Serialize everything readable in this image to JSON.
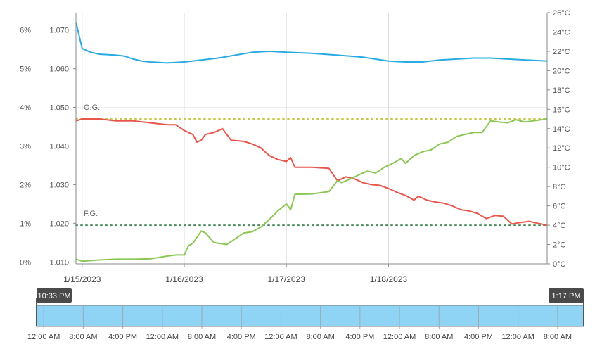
{
  "chart_data": {
    "type": "line",
    "x_start": "2023-01-14T22:33",
    "x_end": "2023-01-19T13:17",
    "x_ticks": [
      "1/15/2023",
      "1/16/2023",
      "1/17/2023",
      "1/18/2023"
    ],
    "y_percent_ticks": [
      "0%",
      "1%",
      "2%",
      "3%",
      "4%",
      "5%",
      "6%"
    ],
    "y_gravity_ticks": [
      "1.010",
      "1.020",
      "1.030",
      "1.040",
      "1.050",
      "1.060",
      "1.070"
    ],
    "y_temp_ticks": [
      "0°C",
      "2°C",
      "4°C",
      "6°C",
      "8°C",
      "10°C",
      "12°C",
      "14°C",
      "16°C",
      "18°C",
      "20°C",
      "22°C",
      "24°C",
      "26°C"
    ],
    "ylim_gravity": [
      1.0095,
      1.0745
    ],
    "ylim_temp": [
      0,
      26
    ],
    "reference_lines": [
      {
        "label": "O.G.",
        "value": 1.047,
        "color": "#c8c84a"
      },
      {
        "label": "F.G.",
        "value": 1.0195,
        "color": "#4a8a5a"
      }
    ],
    "series": [
      {
        "color": "#29abe2",
        "axis": "temperature",
        "values": [
          [
            "2023-01-14T22:33",
            25.0
          ],
          [
            "2023-01-15T00:00",
            22.3
          ],
          [
            "2023-01-15T02:00",
            21.9
          ],
          [
            "2023-01-15T04:00",
            21.7
          ],
          [
            "2023-01-15T08:00",
            21.6
          ],
          [
            "2023-01-15T10:00",
            21.5
          ],
          [
            "2023-01-15T12:00",
            21.2
          ],
          [
            "2023-01-15T14:00",
            21.0
          ],
          [
            "2023-01-15T16:00",
            20.9
          ],
          [
            "2023-01-15T20:00",
            20.8
          ],
          [
            "2023-01-16T00:00",
            20.9
          ],
          [
            "2023-01-16T04:00",
            21.1
          ],
          [
            "2023-01-16T08:00",
            21.3
          ],
          [
            "2023-01-16T12:00",
            21.6
          ],
          [
            "2023-01-16T16:00",
            21.9
          ],
          [
            "2023-01-16T20:00",
            22.0
          ],
          [
            "2023-01-17T00:00",
            21.9
          ],
          [
            "2023-01-17T06:00",
            21.8
          ],
          [
            "2023-01-17T12:00",
            21.6
          ],
          [
            "2023-01-17T18:00",
            21.4
          ],
          [
            "2023-01-18T00:00",
            21.0
          ],
          [
            "2023-01-18T04:00",
            20.9
          ],
          [
            "2023-01-18T08:00",
            20.9
          ],
          [
            "2023-01-18T12:00",
            21.1
          ],
          [
            "2023-01-18T16:00",
            21.2
          ],
          [
            "2023-01-18T20:00",
            21.3
          ],
          [
            "2023-01-19T00:00",
            21.3
          ],
          [
            "2023-01-19T04:00",
            21.2
          ],
          [
            "2023-01-19T13:17",
            21.0
          ]
        ]
      },
      {
        "color": "#e8554a",
        "axis": "gravity",
        "values": [
          [
            "2023-01-14T22:33",
            1.0465
          ],
          [
            "2023-01-15T00:00",
            1.047
          ],
          [
            "2023-01-15T04:00",
            1.047
          ],
          [
            "2023-01-15T08:00",
            1.0465
          ],
          [
            "2023-01-15T12:00",
            1.0465
          ],
          [
            "2023-01-15T16:00",
            1.046
          ],
          [
            "2023-01-15T20:00",
            1.0455
          ],
          [
            "2023-01-15T22:00",
            1.0455
          ],
          [
            "2023-01-16T00:00",
            1.044
          ],
          [
            "2023-01-16T02:00",
            1.043
          ],
          [
            "2023-01-16T03:00",
            1.041
          ],
          [
            "2023-01-16T04:00",
            1.0415
          ],
          [
            "2023-01-16T05:00",
            1.043
          ],
          [
            "2023-01-16T07:00",
            1.0435
          ],
          [
            "2023-01-16T09:00",
            1.0445
          ],
          [
            "2023-01-16T11:00",
            1.0415
          ],
          [
            "2023-01-16T14:00",
            1.0412
          ],
          [
            "2023-01-16T16:00",
            1.0405
          ],
          [
            "2023-01-16T18:00",
            1.0395
          ],
          [
            "2023-01-16T20:00",
            1.0375
          ],
          [
            "2023-01-16T22:00",
            1.0365
          ],
          [
            "2023-01-17T00:00",
            1.036
          ],
          [
            "2023-01-17T01:00",
            1.037
          ],
          [
            "2023-01-17T02:00",
            1.0345
          ],
          [
            "2023-01-17T06:00",
            1.0345
          ],
          [
            "2023-01-17T10:00",
            1.0342
          ],
          [
            "2023-01-17T12:00",
            1.031
          ],
          [
            "2023-01-17T13:00",
            1.0315
          ],
          [
            "2023-01-17T14:00",
            1.032
          ],
          [
            "2023-01-17T16:00",
            1.0315
          ],
          [
            "2023-01-17T18:00",
            1.0305
          ],
          [
            "2023-01-17T20:00",
            1.03
          ],
          [
            "2023-01-17T22:00",
            1.0298
          ],
          [
            "2023-01-18T00:00",
            1.029
          ],
          [
            "2023-01-18T02:00",
            1.028
          ],
          [
            "2023-01-18T04:00",
            1.0272
          ],
          [
            "2023-01-18T06:00",
            1.026
          ],
          [
            "2023-01-18T07:00",
            1.027
          ],
          [
            "2023-01-18T09:00",
            1.026
          ],
          [
            "2023-01-18T11:00",
            1.0255
          ],
          [
            "2023-01-18T13:00",
            1.0252
          ],
          [
            "2023-01-18T15:00",
            1.0245
          ],
          [
            "2023-01-18T17:00",
            1.0235
          ],
          [
            "2023-01-18T19:00",
            1.0232
          ],
          [
            "2023-01-18T21:00",
            1.0225
          ],
          [
            "2023-01-18T23:00",
            1.0212
          ],
          [
            "2023-01-19T01:00",
            1.022
          ],
          [
            "2023-01-19T03:00",
            1.0218
          ],
          [
            "2023-01-19T05:00",
            1.0198
          ],
          [
            "2023-01-19T07:00",
            1.0202
          ],
          [
            "2023-01-19T09:00",
            1.0205
          ],
          [
            "2023-01-19T11:00",
            1.02
          ],
          [
            "2023-01-19T13:17",
            1.0195
          ]
        ]
      },
      {
        "color": "#8cc756",
        "axis": "gravity",
        "values": [
          [
            "2023-01-14T22:33",
            1.0107
          ],
          [
            "2023-01-15T00:00",
            1.0102
          ],
          [
            "2023-01-15T04:00",
            1.0105
          ],
          [
            "2023-01-15T08:00",
            1.0107
          ],
          [
            "2023-01-15T12:00",
            1.0107
          ],
          [
            "2023-01-15T16:00",
            1.0108
          ],
          [
            "2023-01-15T20:00",
            1.0115
          ],
          [
            "2023-01-15T22:00",
            1.0118
          ],
          [
            "2023-01-16T00:00",
            1.0118
          ],
          [
            "2023-01-16T01:00",
            1.0142
          ],
          [
            "2023-01-16T02:00",
            1.0148
          ],
          [
            "2023-01-16T04:00",
            1.018
          ],
          [
            "2023-01-16T05:00",
            1.0175
          ],
          [
            "2023-01-16T07:00",
            1.015
          ],
          [
            "2023-01-16T10:00",
            1.0145
          ],
          [
            "2023-01-16T12:00",
            1.016
          ],
          [
            "2023-01-16T14:00",
            1.0175
          ],
          [
            "2023-01-16T16:00",
            1.0178
          ],
          [
            "2023-01-16T18:00",
            1.019
          ],
          [
            "2023-01-16T20:00",
            1.021
          ],
          [
            "2023-01-16T22:00",
            1.0232
          ],
          [
            "2023-01-17T00:00",
            1.025
          ],
          [
            "2023-01-17T01:00",
            1.0235
          ],
          [
            "2023-01-17T02:00",
            1.0275
          ],
          [
            "2023-01-17T06:00",
            1.0276
          ],
          [
            "2023-01-17T10:00",
            1.0282
          ],
          [
            "2023-01-17T12:00",
            1.031
          ],
          [
            "2023-01-17T13:00",
            1.0305
          ],
          [
            "2023-01-17T15:00",
            1.0315
          ],
          [
            "2023-01-17T17:00",
            1.0325
          ],
          [
            "2023-01-17T19:00",
            1.0335
          ],
          [
            "2023-01-17T21:00",
            1.033
          ],
          [
            "2023-01-17T23:00",
            1.0345
          ],
          [
            "2023-01-18T01:00",
            1.0355
          ],
          [
            "2023-01-18T03:00",
            1.0368
          ],
          [
            "2023-01-18T04:00",
            1.0355
          ],
          [
            "2023-01-18T06:00",
            1.0375
          ],
          [
            "2023-01-18T08:00",
            1.0385
          ],
          [
            "2023-01-18T10:00",
            1.039
          ],
          [
            "2023-01-18T12:00",
            1.0405
          ],
          [
            "2023-01-18T14:00",
            1.041
          ],
          [
            "2023-01-18T16:00",
            1.0425
          ],
          [
            "2023-01-18T18:00",
            1.043
          ],
          [
            "2023-01-18T20:00",
            1.0435
          ],
          [
            "2023-01-18T22:00",
            1.0435
          ],
          [
            "2023-01-19T00:00",
            1.0465
          ],
          [
            "2023-01-19T02:00",
            1.0462
          ],
          [
            "2023-01-19T04:00",
            1.046
          ],
          [
            "2023-01-19T06:00",
            1.0468
          ],
          [
            "2023-01-19T08:00",
            1.0462
          ],
          [
            "2023-01-19T10:00",
            1.0465
          ],
          [
            "2023-01-19T13:17",
            1.047
          ]
        ]
      }
    ]
  },
  "navigator": {
    "start_badge": "10:33 PM",
    "end_badge": "1:17 PM",
    "fill_color": "#8fd4f4",
    "ticks": [
      "12:00 AM",
      "8:00 AM",
      "4:00 PM",
      "12:00 AM",
      "8:00 AM",
      "4:00 PM",
      "12:00 AM",
      "8:00 AM",
      "4:00 PM",
      "12:00 AM",
      "8:00 AM",
      "4:00 PM",
      "12:00 AM",
      "8:00 AM"
    ],
    "tick_times": [
      "2023-01-15T00:00",
      "2023-01-15T08:00",
      "2023-01-15T16:00",
      "2023-01-16T00:00",
      "2023-01-16T08:00",
      "2023-01-16T16:00",
      "2023-01-17T00:00",
      "2023-01-17T08:00",
      "2023-01-17T16:00",
      "2023-01-18T00:00",
      "2023-01-18T08:00",
      "2023-01-18T16:00",
      "2023-01-19T00:00",
      "2023-01-19T08:00"
    ]
  }
}
